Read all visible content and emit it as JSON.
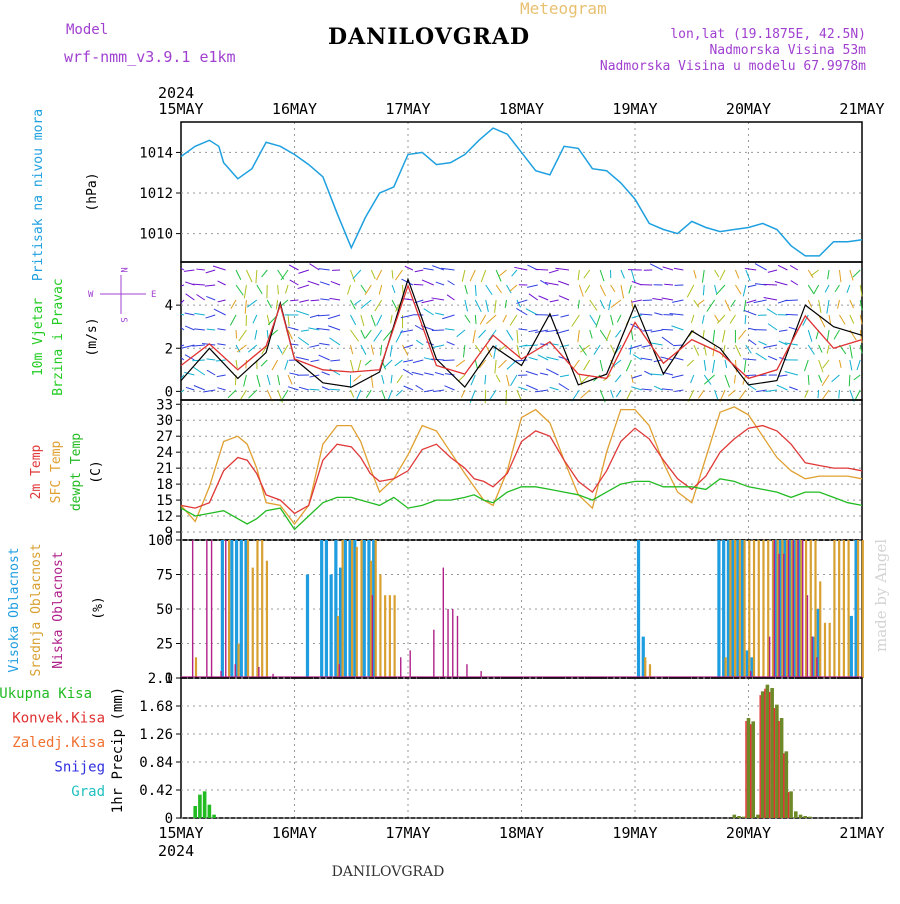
{
  "header": {
    "model_label": "Model",
    "model_name": "wrf-nmm_v3.9.1 e1km",
    "meteogram_label": "Meteogram",
    "station": "DANILOVGRAD",
    "lonlat": "lon,lat (19.1875E, 42.5N)",
    "elevation": "Nadmorska Visina 53m",
    "elevation_model": "Nadmorska Visina u modelu 67.9978m",
    "footer_station": "DANILOVGRAD",
    "watermark": "made by Angel"
  },
  "time_axis": {
    "year": "2024",
    "labels": [
      "15MAY",
      "16MAY",
      "17MAY",
      "18MAY",
      "19MAY",
      "20MAY",
      "21MAY"
    ]
  },
  "colors": {
    "pressure": "#1ea0e0",
    "wind_speed": "#e03030",
    "wind_gust": "#000000",
    "t2m": "#e03838",
    "tsfc": "#e0a030",
    "dewpt": "#22bb22",
    "cloud_high": "#1e9de0",
    "cloud_mid": "#d8a030",
    "cloud_low": "#b0208a",
    "precip_total": "#22bb22",
    "precip_conv": "#e03030",
    "precip_frozen": "#f07030",
    "snow": "#3030e0",
    "hail": "#20c0c0",
    "precip_bar": "#6e8a28",
    "wind_label": "#22cc22",
    "title_yellow": "#e8c070",
    "purple": "#a040d0"
  },
  "chart_data": [
    {
      "type": "line",
      "panel": "pressure",
      "ylabel_left": "Pritisak na nivou mora",
      "ylabel_unit": "(hPa)",
      "yticks": [
        1010,
        1012,
        1014
      ],
      "ylim": [
        1008.6,
        1015.5
      ],
      "x_units": "hours since 15MAY 00Z",
      "x": [
        0,
        3,
        6,
        8,
        9,
        12,
        15,
        18,
        21,
        24,
        27,
        30,
        33,
        36,
        39,
        42,
        45,
        48,
        51,
        54,
        57,
        60,
        63,
        66,
        69,
        72,
        75,
        78,
        81,
        84,
        87,
        90,
        93,
        96,
        99,
        102,
        105,
        108,
        111,
        114,
        117,
        120,
        123,
        126,
        129,
        132,
        135,
        138,
        141,
        144
      ],
      "series": [
        {
          "name": "",
          "values": [
            1013.8,
            1014.3,
            1014.6,
            1014.3,
            1013.5,
            1012.7,
            1013.2,
            1014.5,
            1014.3,
            1013.9,
            1013.4,
            1012.8,
            1011.0,
            1009.3,
            1010.8,
            1012.0,
            1012.3,
            1013.9,
            1014.0,
            1013.4,
            1013.5,
            1013.9,
            1014.6,
            1015.2,
            1014.9,
            1014.0,
            1013.1,
            1012.9,
            1014.3,
            1014.2,
            1013.2,
            1013.1,
            1012.5,
            1011.7,
            1010.5,
            1010.2,
            1010.0,
            1010.6,
            1010.3,
            1010.1,
            1010.2,
            1010.3,
            1010.5,
            1010.2,
            1009.4,
            1008.9,
            1008.9,
            1009.6,
            1009.6,
            1009.7
          ]
        }
      ]
    },
    {
      "type": "line",
      "panel": "wind",
      "ylabel_left": [
        "10m Vjetar",
        "Brzina i Pravac"
      ],
      "ylabel_unit": "(m/s)",
      "compass": {
        "n": "N",
        "s": "S",
        "e": "E",
        "w": "W"
      },
      "yticks": [
        0,
        2,
        4
      ],
      "ylim": [
        -0.4,
        6
      ],
      "x_units": "hours since 15MAY 00Z",
      "x": [
        0,
        6,
        12,
        18,
        21,
        24,
        30,
        36,
        42,
        48,
        54,
        60,
        66,
        72,
        78,
        84,
        90,
        96,
        102,
        108,
        114,
        120,
        126,
        132,
        138,
        144
      ],
      "series": [
        {
          "name": "",
          "values": [
            1.2,
            2.2,
            1.0,
            2.1,
            4.0,
            1.5,
            1.0,
            0.9,
            1.0,
            4.9,
            1.2,
            0.8,
            2.6,
            1.5,
            2.3,
            0.8,
            0.6,
            3.2,
            1.3,
            2.4,
            1.8,
            0.6,
            1.0,
            3.5,
            2.0,
            2.4
          ]
        },
        {
          "name": "",
          "values": [
            0.5,
            2.0,
            0.6,
            1.8,
            4.1,
            1.5,
            0.4,
            0.2,
            0.9,
            5.2,
            1.5,
            0.2,
            2.1,
            1.2,
            3.6,
            0.3,
            0.8,
            4.0,
            0.8,
            2.8,
            2.0,
            0.3,
            0.5,
            4.0,
            3.0,
            2.6
          ]
        }
      ]
    },
    {
      "type": "line",
      "panel": "temperature",
      "ylabel_left": [
        "2m Temp",
        "SFC Temp",
        "dewpt Temp"
      ],
      "ylabel_unit": "(C)",
      "yticks": [
        9,
        12,
        15,
        18,
        21,
        24,
        27,
        30,
        33
      ],
      "ylim": [
        7.5,
        33.8
      ],
      "x_units": "hours since 15MAY 00Z",
      "x": [
        0,
        3,
        6,
        9,
        12,
        14,
        16,
        18,
        21,
        24,
        27,
        30,
        33,
        36,
        38,
        40,
        42,
        45,
        48,
        51,
        54,
        57,
        60,
        62,
        64,
        66,
        69,
        72,
        75,
        78,
        81,
        84,
        87,
        90,
        93,
        96,
        99,
        102,
        105,
        108,
        111,
        114,
        117,
        120,
        123,
        126,
        129,
        132,
        135,
        138,
        141,
        144
      ],
      "series": [
        {
          "name": "2m Temp",
          "values": [
            14.0,
            13.5,
            14.5,
            20.5,
            23.0,
            22.5,
            20.0,
            16.0,
            15.0,
            12.5,
            14.0,
            22.5,
            25.5,
            25.0,
            23.0,
            20.0,
            18.5,
            19.0,
            20.5,
            24.5,
            25.5,
            23.0,
            21.0,
            19.0,
            18.5,
            17.5,
            20.0,
            26.0,
            28.0,
            27.0,
            22.5,
            18.5,
            16.5,
            20.5,
            26.0,
            28.5,
            26.5,
            22.5,
            19.0,
            17.0,
            19.5,
            24.0,
            26.5,
            28.5,
            29.0,
            28.0,
            25.5,
            22.0,
            21.5,
            21.0,
            21.0,
            20.5
          ]
        },
        {
          "name": "SFC Temp",
          "values": [
            14.0,
            11.0,
            17.5,
            26.0,
            27.0,
            25.5,
            21.0,
            14.5,
            14.0,
            10.5,
            14.0,
            25.5,
            29.0,
            29.0,
            26.0,
            21.0,
            16.5,
            19.0,
            23.5,
            29.0,
            28.0,
            24.0,
            20.0,
            17.5,
            15.0,
            14.0,
            20.5,
            30.5,
            32.0,
            29.5,
            22.5,
            16.0,
            13.5,
            24.0,
            32.0,
            32.0,
            29.0,
            22.0,
            16.5,
            14.5,
            23.0,
            31.5,
            32.5,
            31.0,
            27.0,
            23.0,
            20.5,
            19.0,
            19.5,
            19.5,
            19.5,
            19.0
          ]
        },
        {
          "name": "dewpt Temp",
          "values": [
            13.5,
            12.0,
            12.5,
            13.0,
            11.5,
            10.5,
            11.5,
            13.0,
            13.5,
            9.5,
            12.0,
            14.5,
            15.5,
            15.5,
            15.0,
            14.5,
            14.0,
            15.5,
            13.5,
            14.0,
            15.0,
            15.0,
            15.5,
            16.0,
            15.0,
            14.5,
            16.5,
            17.5,
            17.5,
            17.0,
            16.5,
            16.0,
            15.0,
            16.5,
            18.0,
            18.5,
            18.5,
            17.5,
            17.5,
            17.5,
            17.0,
            19.0,
            18.5,
            17.5,
            17.0,
            16.5,
            15.5,
            16.5,
            16.5,
            15.5,
            14.5,
            14.0
          ]
        }
      ]
    },
    {
      "type": "bar",
      "panel": "cloud",
      "ylabel_left": [
        "Visoka Oblacnost",
        "Srednja Oblacnost",
        "Niska Oblacnost"
      ],
      "ylabel_unit": "(%)",
      "yticks": [
        0,
        25,
        50,
        75,
        100
      ],
      "ylim": [
        0,
        100
      ],
      "x_units": "hours since 15MAY 00Z",
      "series": [
        {
          "name": "Visoka Oblacnost",
          "x": [
            9,
            11,
            12,
            13,
            14,
            27,
            30,
            31,
            32,
            33,
            34,
            35,
            36,
            37,
            39,
            40,
            41,
            97,
            98,
            114,
            115,
            116,
            117,
            118,
            119,
            120,
            121,
            126,
            127,
            128,
            129,
            130,
            131,
            134,
            135,
            142,
            143
          ],
          "values": [
            100,
            100,
            100,
            100,
            100,
            75,
            100,
            100,
            75,
            100,
            80,
            100,
            100,
            100,
            100,
            100,
            100,
            100,
            30,
            100,
            100,
            100,
            100,
            100,
            100,
            20,
            15,
            100,
            100,
            100,
            100,
            100,
            100,
            30,
            50,
            45,
            100
          ]
        },
        {
          "name": "Srednja Oblacnost",
          "x": [
            3,
            10,
            12,
            14,
            15,
            16,
            17,
            18,
            33,
            34,
            36,
            37,
            38,
            40,
            41,
            42,
            43,
            44,
            45,
            98,
            99,
            115,
            116,
            117,
            118,
            119,
            120,
            121,
            122,
            123,
            124,
            125,
            126,
            127,
            128,
            129,
            130,
            131,
            132,
            133,
            134,
            135,
            136,
            137,
            138,
            139,
            140,
            141,
            143,
            144
          ],
          "values": [
            15,
            100,
            25,
            100,
            80,
            100,
            100,
            85,
            45,
            100,
            100,
            95,
            100,
            85,
            100,
            75,
            60,
            60,
            60,
            15,
            10,
            15,
            100,
            100,
            100,
            100,
            100,
            100,
            100,
            100,
            100,
            100,
            100,
            100,
            100,
            100,
            100,
            100,
            100,
            100,
            100,
            70,
            40,
            40,
            100,
            100,
            100,
            100,
            100,
            100
          ]
        },
        {
          "name": "Niska Oblacnost",
          "x": [
            2,
            5,
            6,
            8,
            9,
            11,
            16,
            19,
            33,
            40,
            46,
            48,
            53,
            55,
            56,
            57,
            58,
            60,
            63,
            120,
            124,
            125,
            126,
            127,
            128,
            129,
            130,
            131,
            132,
            133,
            134
          ],
          "values": [
            100,
            100,
            100,
            5,
            100,
            10,
            8,
            3,
            10,
            60,
            15,
            20,
            35,
            80,
            50,
            50,
            45,
            10,
            5,
            5,
            30,
            100,
            90,
            90,
            100,
            100,
            100,
            100,
            60,
            30,
            15
          ]
        }
      ]
    },
    {
      "type": "bar",
      "panel": "precip",
      "ylabel_left": "1hr Precip (mm)",
      "legend": [
        "Ukupna Kisa",
        "Konvek.Kisa",
        "Zaledj.Kisa",
        "Snijeg",
        "Grad"
      ],
      "yticks": [
        0,
        0.42,
        0.84,
        1.26,
        1.68,
        2.1
      ],
      "ylim": [
        0,
        2.1
      ],
      "x_units": "hours since 15MAY 00Z",
      "series": [
        {
          "name": "Ukupna Kisa",
          "x": [
            3,
            4,
            5,
            6,
            7
          ],
          "values": [
            0.18,
            0.35,
            0.4,
            0.2,
            0.05
          ]
        },
        {
          "name": "",
          "x": [
            117,
            118,
            119,
            120,
            121,
            122,
            123,
            124,
            125,
            126,
            127,
            128,
            129,
            130,
            131,
            132,
            133
          ],
          "values": [
            0.05,
            0.03,
            0.02,
            1.5,
            1.45,
            0.05,
            1.9,
            2.0,
            1.95,
            1.7,
            1.5,
            1.0,
            0.4,
            0.1,
            0.05,
            0.03,
            0.02
          ]
        }
      ]
    }
  ]
}
